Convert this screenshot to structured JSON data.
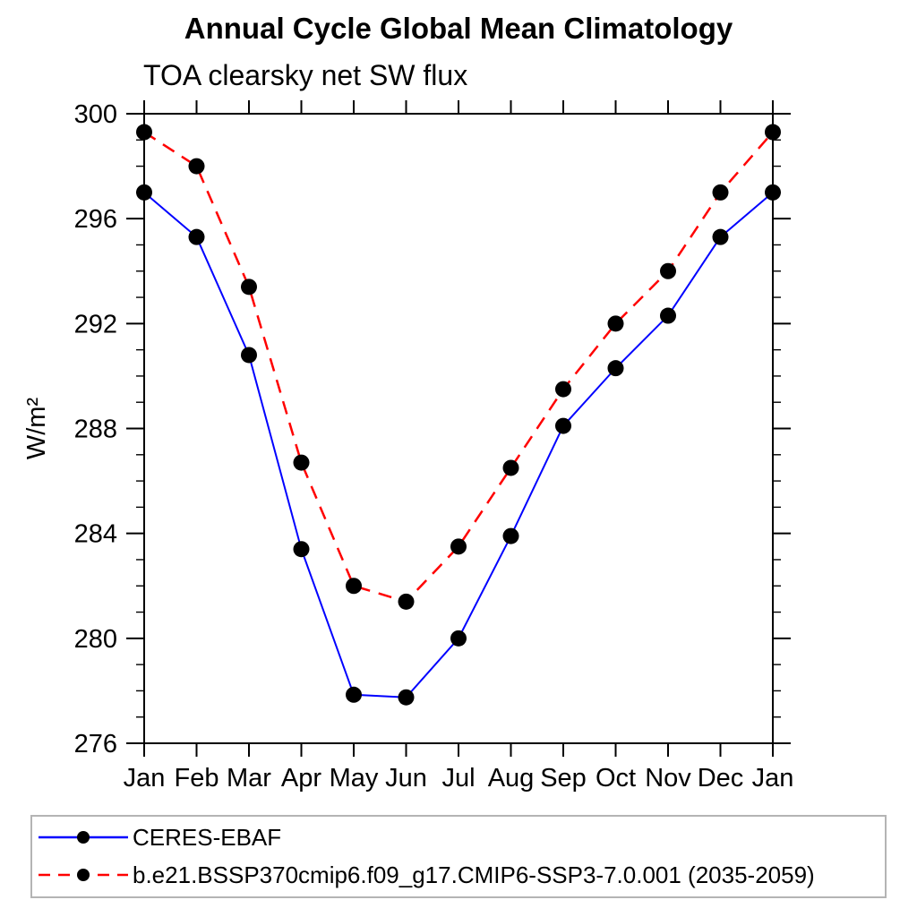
{
  "chart_data": {
    "type": "line",
    "title": "Annual Cycle Global Mean Climatology",
    "subtitle": "TOA clearsky net SW flux",
    "ylabel": "W/m²",
    "xlabel": "",
    "x_labels": [
      "Jan",
      "Feb",
      "Mar",
      "Apr",
      "May",
      "Jun",
      "Jul",
      "Aug",
      "Sep",
      "Oct",
      "Nov",
      "Dec",
      "Jan"
    ],
    "ylim": [
      276,
      300
    ],
    "ytick_major": [
      276,
      280,
      284,
      288,
      292,
      296,
      300
    ],
    "ytick_minor_step": 1,
    "grid": false,
    "axis_color": "#000000",
    "legend": {
      "position": "bottom",
      "border_color": "#b4b4b4"
    },
    "series": [
      {
        "name": "CERES-EBAF",
        "color": "#0000ff",
        "line_style": "solid",
        "line_width": 2,
        "marker": "filled-circle",
        "marker_color": "#000000",
        "values": [
          297.0,
          295.3,
          290.8,
          283.4,
          277.85,
          277.75,
          280.0,
          283.9,
          288.1,
          290.3,
          292.3,
          295.3,
          297.0
        ]
      },
      {
        "name": "b.e21.BSSP370cmip6.f09_g17.CMIP6-SSP3-7.0.001 (2035-2059)",
        "color": "#ff0000",
        "line_style": "dashed",
        "line_width": 2.5,
        "marker": "filled-circle",
        "marker_color": "#000000",
        "values": [
          299.3,
          298.0,
          293.4,
          286.7,
          282.0,
          281.4,
          283.5,
          286.5,
          289.5,
          292.0,
          294.0,
          297.0,
          299.3
        ]
      }
    ]
  }
}
